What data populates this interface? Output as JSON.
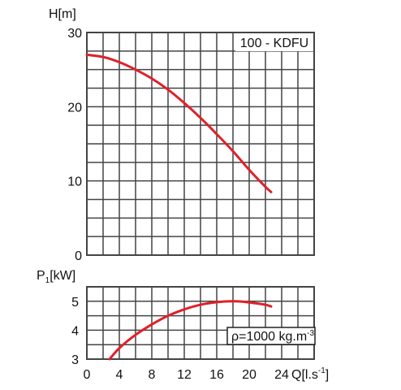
{
  "chart_data": [
    {
      "type": "line",
      "model_label": "100 - KDFU",
      "ylabel": "H[m]",
      "ylim": [
        0,
        30
      ],
      "yticks": [
        0,
        10,
        20,
        30
      ],
      "xlim": [
        0,
        28
      ],
      "grid": true,
      "series": [
        {
          "color": "#e0202a",
          "x": [
            0,
            2,
            4,
            6,
            8,
            10,
            12,
            14,
            16,
            18,
            20,
            22,
            22.7
          ],
          "y": [
            27.0,
            26.7,
            26.0,
            25.0,
            23.8,
            22.3,
            20.5,
            18.5,
            16.3,
            14.0,
            11.5,
            9.2,
            8.5
          ]
        }
      ]
    },
    {
      "type": "line",
      "ylabel_main": "P",
      "ylabel_sub": "1",
      "ylabel_unit": "[kW]",
      "ylim": [
        3,
        5.5
      ],
      "yticks": [
        3,
        4,
        5
      ],
      "xlim": [
        0,
        28
      ],
      "xticks": [
        0,
        4,
        8,
        12,
        16,
        20,
        24
      ],
      "xlabel_main": "Q[l.s",
      "xlabel_sup": "-1",
      "xlabel_end": "]",
      "grid": true,
      "annotation_main": "ρ=1000 kg.m",
      "annotation_sup": "-3",
      "series": [
        {
          "color": "#e0202a",
          "x": [
            2.8,
            4,
            6,
            8,
            10,
            12,
            14,
            16,
            18,
            19,
            20,
            22,
            22.7
          ],
          "y": [
            3.0,
            3.38,
            3.84,
            4.2,
            4.5,
            4.72,
            4.88,
            4.97,
            5.0,
            4.99,
            4.96,
            4.88,
            4.82
          ]
        }
      ]
    }
  ]
}
